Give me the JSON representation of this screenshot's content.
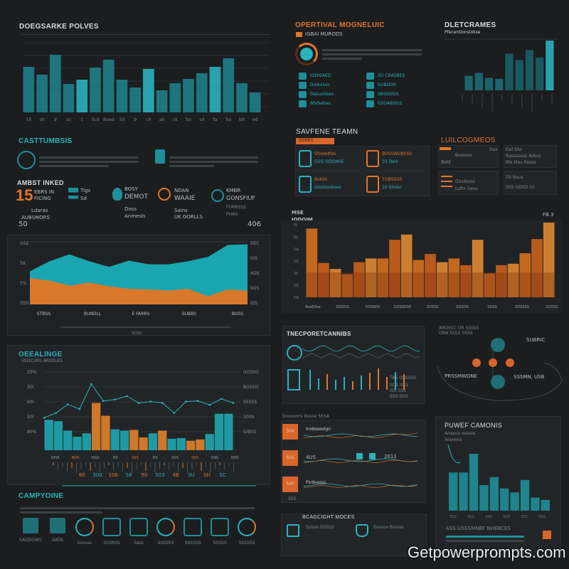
{
  "colors": {
    "background": "#1b1d1f",
    "teal": "#2ab3bd",
    "teal_dark": "#1b6f77",
    "orange": "#e0762a",
    "orange_dark": "#a4451a"
  },
  "top_chart": {
    "title": "DOEGSARKE POLVES",
    "x_labels": [
      "15",
      "ck",
      "d",
      "ac",
      "t",
      "Scd",
      "Boed",
      "Sd",
      "b",
      "ch",
      "ab",
      "ck",
      "bo",
      "sd",
      "fa",
      "ba",
      "bd",
      "ed"
    ]
  },
  "casttumbsis": {
    "title": "CASTTUMBSIS",
    "icons": [
      "stopwatch-icon",
      "document-icon"
    ]
  },
  "ambst": {
    "title": "AMBST INKED",
    "big_number": "15",
    "items": [
      {
        "line1": "EBRS IN",
        "line2": "FICING",
        "line3": "Ldaras",
        "line4": "AUBSMORS"
      },
      {
        "line1": "Tigs",
        "line2": "Sd",
        "line3": "",
        "line4": ""
      },
      {
        "line1": "BOSY",
        "line2": "DEMOT",
        "line3": "Doss",
        "line4": "Anmesls"
      },
      {
        "line1": "NDAN",
        "line2": "WAAIE",
        "line3": "Sains",
        "line4": "UK GORLLS"
      },
      {
        "line1": "KMBR",
        "line2": "GONSFIUF",
        "line3": "FORRSSS",
        "line4": "PHAS"
      }
    ],
    "left_value": "50",
    "right_value": "406"
  },
  "area_chart": {
    "y_left": [
      "OS2",
      "58.",
      "5%",
      "OSS"
    ],
    "y_right": [
      "DEC",
      "IOS",
      "ADS",
      "SOS",
      "IDS"
    ],
    "x_labels": [
      "STBSIL",
      "BUNDLL",
      "E FARRS",
      "SUBBS",
      "BOSS"
    ],
    "footer": "SOSS"
  },
  "overall": {
    "title": "OEEALINGE",
    "subtitle": "SSDCURS AREDLES",
    "y_left": [
      "2S%",
      "30l",
      "60l",
      "50l",
      "80%"
    ],
    "y_right": [
      "UOSSO",
      "BOSSIS",
      "SSSSS",
      "3000",
      "GIBSS"
    ],
    "top_labels": [
      "DISS",
      "NOS",
      "ISSS",
      "DS",
      "SSS",
      "DS",
      "SSS",
      "SSS",
      "DSS",
      "DOS"
    ],
    "bottom_values": [
      "90",
      "300",
      "106",
      "S8",
      "90",
      "S03",
      "4B",
      "SU",
      "SH",
      "SC"
    ]
  },
  "campyoine": {
    "title": "CAMPYOINE",
    "icons": [
      {
        "name": "folder-icon",
        "label": "SAGDOWS"
      },
      {
        "name": "chart-card-icon",
        "label": "DATA"
      },
      {
        "name": "gauge-icon",
        "label": "Sssoes"
      },
      {
        "name": "dice-icon",
        "label": "SSSRSS"
      },
      {
        "name": "target-icon",
        "label": "Sass"
      },
      {
        "name": "graph-icon",
        "label": "SSSSSS"
      },
      {
        "name": "bird-icon",
        "label": "SSSSSS"
      },
      {
        "name": "car-icon",
        "label": "SSSSS"
      },
      {
        "name": "magnet-icon",
        "label": "SSSSSS"
      }
    ]
  },
  "operational": {
    "title": "OPERTIVAL MOGNELUIC",
    "subtitle": "IGBAI MURODS",
    "list_left": [
      "IODISAED",
      "Doduison",
      "Dasuoitees",
      "Bfsfsebes"
    ],
    "list_right": [
      "SD CRASBES",
      "SOBDOS",
      "SBSSOSIS",
      "GSOABSISS"
    ]
  },
  "dletcrames": {
    "title": "DLETCRAMES",
    "subtitle": "Pfecentionslokse"
  },
  "savfene": {
    "title": "SAVFENE TEAMN",
    "tag": "SORRS",
    "cards": [
      {
        "title": "Sfoolotfon",
        "sub": "GSG SIDOASE",
        "icon": "phone-battery-icon"
      },
      {
        "title": "BOSSWUBSSS",
        "sub": "10 Dals",
        "icon": "phone-icon"
      },
      {
        "title": "Boklis",
        "sub": "Dostssobses",
        "icon": "document-icon"
      },
      {
        "title": "TOBSDSS",
        "sub": "10 Shoko",
        "icon": "bird-icon"
      }
    ]
  },
  "luilcog": {
    "title": "LUILCOGMEOS",
    "rows": [
      "Dos",
      "Bosssss",
      "Bdd"
    ],
    "right": [
      "Ewl Ebs",
      "Basssosss Adsse",
      "Bbi Mas Roses"
    ],
    "bottom": [
      "Gosdsoss",
      "Lufor Dess"
    ],
    "bottom_right": [
      "Dli Baus",
      "SSS GOSO SS"
    ]
  },
  "orange_chart": {
    "title": "MSE",
    "subtitle": "IODOIM",
    "corner": "FB.3",
    "y_labels": [
      "IS",
      "Ns",
      "Ua",
      "DS",
      "SS",
      "DS",
      "DS"
    ],
    "x_labels": [
      "BoeDfoe",
      "DDDDS",
      "SOSSOS",
      "DOSSOSS",
      "SOSSS",
      "SOSOS",
      "SOSS",
      "SOSSSS",
      "SOSSS"
    ]
  },
  "tnecporet": {
    "title": "TNECPORETCANNIBS",
    "legend": "TBS OSSSSS",
    "legend_rows": [
      "SDS SSS",
      "ISS SSS",
      "BSS DSS"
    ]
  },
  "network": {
    "header": [
      "AROSSC OR SSSSS",
      "DRN SSSS SSSS"
    ],
    "top_label": "SUBRIC",
    "left_label": "PRSSMWONE",
    "right_label": "SSSMN, USB"
  },
  "sparklines": {
    "header": "Dossoons Bosse SSSA",
    "rows": [
      {
        "badge": "30K",
        "label": "Irodosoolgn"
      },
      {
        "badge": "SUS",
        "label": "4US",
        "value": "2011"
      },
      {
        "badge": "SSF",
        "label": "Pirdsooss"
      }
    ],
    "footer": "SSS"
  },
  "powef": {
    "title": "PUWEF CAMONIS",
    "subtitle": "Anasoo sssses",
    "legend": "Sosooos",
    "footer_title": "ASS LISSSMNBF NHEBCES"
  },
  "bcagcight": {
    "title": "BCAGCIGHT MOCES",
    "items": [
      {
        "title": "Sslsss DSSSS",
        "icon": "monitor-chart-icon"
      },
      {
        "title": "Dsssos Bsssss",
        "icon": "shield-user-icon"
      }
    ]
  },
  "watermark": "Getpowerprompts.com",
  "chart_data": [
    {
      "type": "bar",
      "name_hint": "top-teal",
      "values": [
        64,
        53,
        81,
        40,
        46,
        63,
        74,
        46,
        35,
        61,
        31,
        41,
        47,
        55,
        64,
        76,
        41,
        28
      ]
    },
    {
      "type": "area",
      "series": [
        {
          "color": "teal",
          "values": [
            53,
            69,
            80,
            69,
            60,
            70,
            64,
            64,
            69,
            76,
            95,
            96
          ]
        },
        {
          "color": "orange",
          "values": [
            42,
            38,
            30,
            35,
            29,
            25,
            24,
            22,
            25,
            13,
            24,
            22
          ]
        }
      ]
    },
    {
      "type": "bar",
      "name_hint": "overall-mixed",
      "values": [
        45,
        43,
        29,
        20,
        25,
        70,
        51,
        31,
        29,
        30,
        19,
        25,
        29,
        17,
        18,
        14,
        16,
        24,
        54,
        54
      ],
      "colors": [
        "teal",
        "teal",
        "teal",
        "teal",
        "teal",
        "orange",
        "orange",
        "teal",
        "teal",
        "orange",
        "orange",
        "teal",
        "orange",
        "teal",
        "teal",
        "orange",
        "orange",
        "teal",
        "teal",
        "teal"
      ],
      "line": [
        48,
        55,
        68,
        61,
        98,
        73,
        75,
        80,
        70,
        72,
        70,
        55,
        72,
        73,
        67,
        76,
        70
      ]
    },
    {
      "type": "bar",
      "name_hint": "dletcrames",
      "values": [
        29,
        35,
        25,
        23,
        74,
        61,
        81,
        66,
        100
      ]
    },
    {
      "type": "bar",
      "name_hint": "orange",
      "values": [
        92,
        46,
        38,
        31,
        47,
        52,
        52,
        77,
        84,
        50,
        58,
        47,
        52,
        43,
        77,
        32,
        43,
        45,
        59,
        78,
        100
      ]
    },
    {
      "type": "bar",
      "name_hint": "powef",
      "values": [
        67,
        67,
        100,
        45,
        59,
        39,
        32,
        54,
        23,
        19
      ]
    }
  ]
}
